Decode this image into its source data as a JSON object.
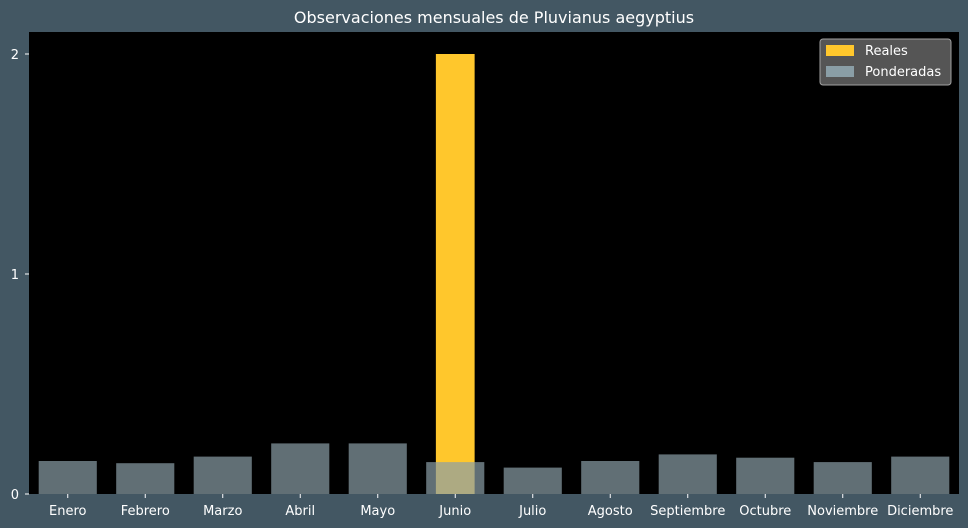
{
  "chart_data": {
    "type": "bar",
    "title": "Observaciones mensuales de Pluvianus aegyptius",
    "xlabel": "",
    "ylabel": "",
    "categories": [
      "Enero",
      "Febrero",
      "Marzo",
      "Abril",
      "Mayo",
      "Junio",
      "Julio",
      "Agosto",
      "Septiembre",
      "Octubre",
      "Noviembre",
      "Diciembre"
    ],
    "series": [
      {
        "name": "Reales",
        "values": [
          0,
          0,
          0,
          0,
          0,
          2,
          0,
          0,
          0,
          0,
          0,
          0
        ],
        "color": "#ffc72c"
      },
      {
        "name": "Ponderadas",
        "values": [
          0.15,
          0.14,
          0.17,
          0.23,
          0.23,
          0.145,
          0.12,
          0.15,
          0.18,
          0.165,
          0.145,
          0.17
        ],
        "color": "#8a9ea6"
      }
    ],
    "ylim": [
      0,
      2.1
    ],
    "yticks": [
      0,
      1,
      2
    ],
    "grid": false,
    "legend_position": "top-right",
    "colors": {
      "figure_bg": "#435763",
      "plot_bg": "#000000",
      "text": "#ffffff"
    }
  }
}
